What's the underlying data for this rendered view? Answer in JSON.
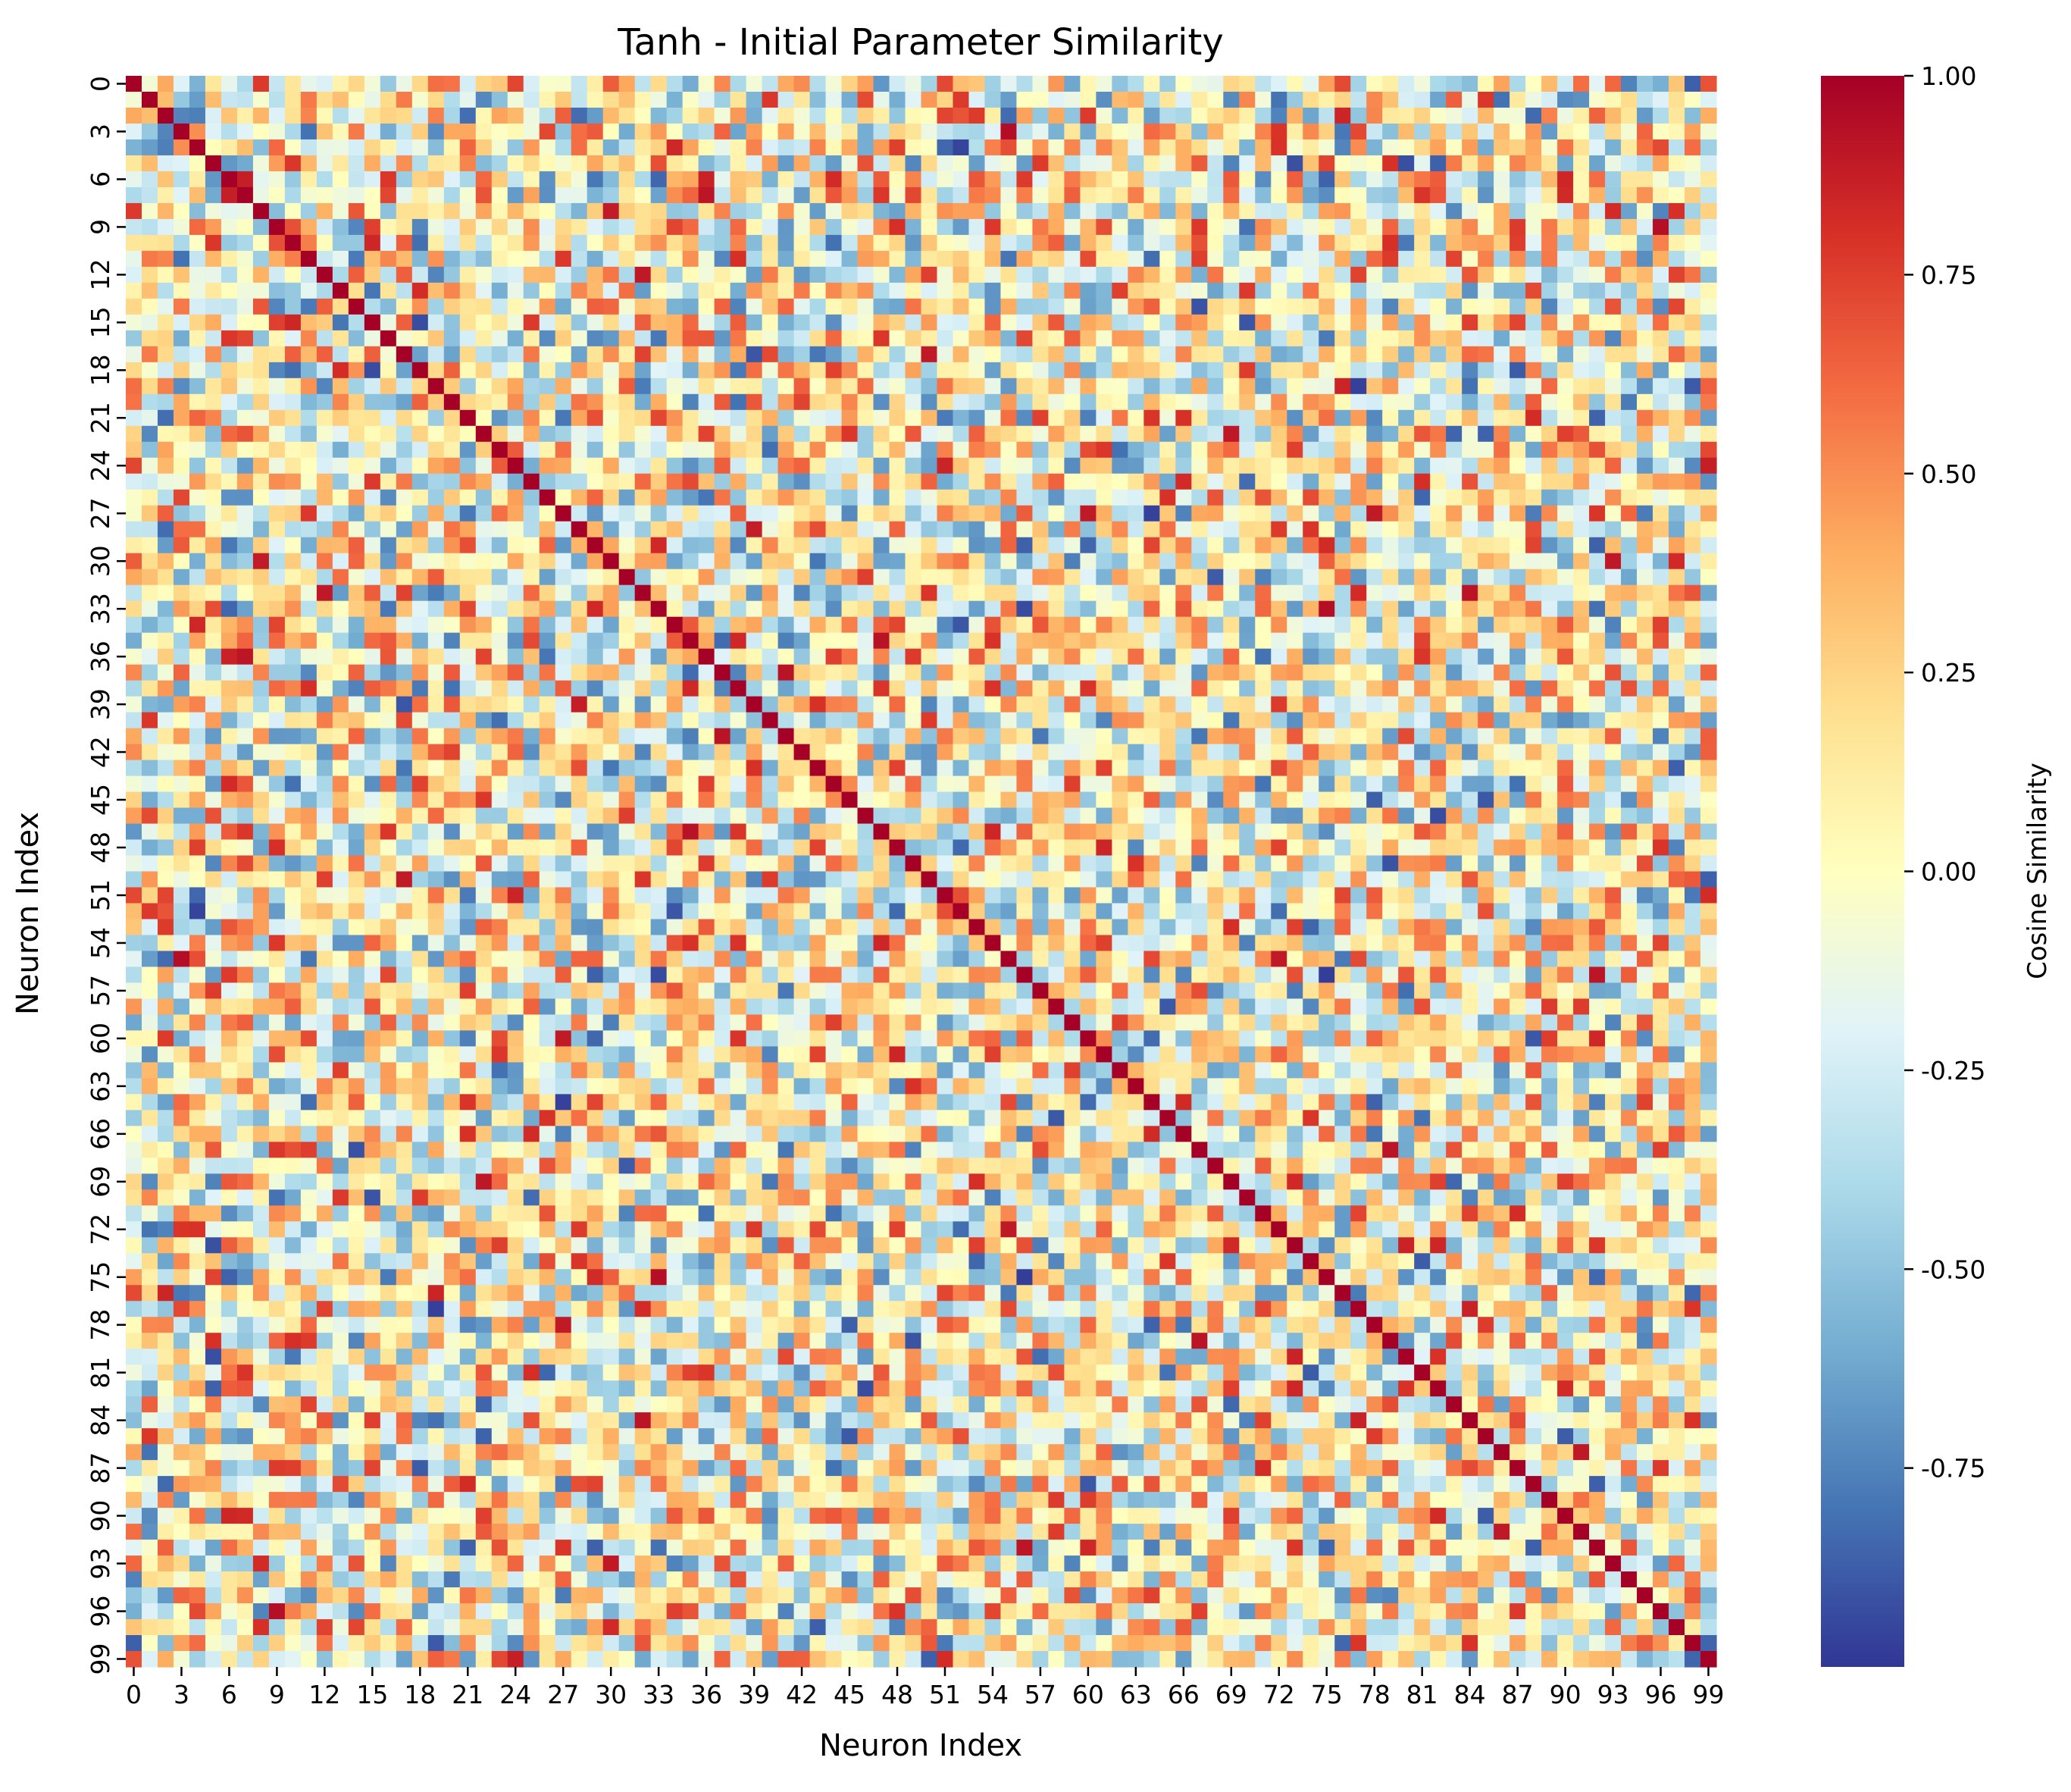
{
  "chart_data": {
    "type": "heatmap",
    "title": "Tanh - Initial Parameter Similarity",
    "xlabel": "Neuron Index",
    "ylabel": "Neuron Index",
    "n_rows": 100,
    "n_cols": 100,
    "x_tick_labels": [
      "0",
      "3",
      "6",
      "9",
      "12",
      "15",
      "18",
      "21",
      "24",
      "27",
      "30",
      "33",
      "36",
      "39",
      "42",
      "45",
      "48",
      "51",
      "54",
      "57",
      "60",
      "63",
      "66",
      "69",
      "72",
      "75",
      "78",
      "81",
      "84",
      "87",
      "90",
      "93",
      "96",
      "99"
    ],
    "y_tick_labels": [
      "0",
      "3",
      "6",
      "9",
      "12",
      "15",
      "18",
      "21",
      "24",
      "27",
      "30",
      "33",
      "36",
      "39",
      "42",
      "45",
      "48",
      "51",
      "54",
      "57",
      "60",
      "63",
      "66",
      "69",
      "72",
      "75",
      "78",
      "81",
      "84",
      "87",
      "90",
      "93",
      "96",
      "99"
    ],
    "value_range": [
      -1.0,
      1.0
    ],
    "diagonal_value": 1.0,
    "symmetric": true,
    "colormap": "RdYlBu_r",
    "colormap_stops": [
      "#313695",
      "#4575b4",
      "#74add1",
      "#abd9e9",
      "#e0f3f8",
      "#ffffbf",
      "#fee090",
      "#fdae61",
      "#f46d43",
      "#d73027",
      "#a50026"
    ],
    "colorbar": {
      "label": "Cosine Similarity",
      "ticks": [
        1.0,
        0.75,
        0.5,
        0.25,
        0.0,
        -0.25,
        -0.5,
        -0.75
      ],
      "tick_labels": [
        "1.00",
        "0.75",
        "0.50",
        "0.25",
        "0.00",
        "-0.25",
        "-0.50",
        "-0.75"
      ]
    },
    "grid": false,
    "legend": "none"
  }
}
